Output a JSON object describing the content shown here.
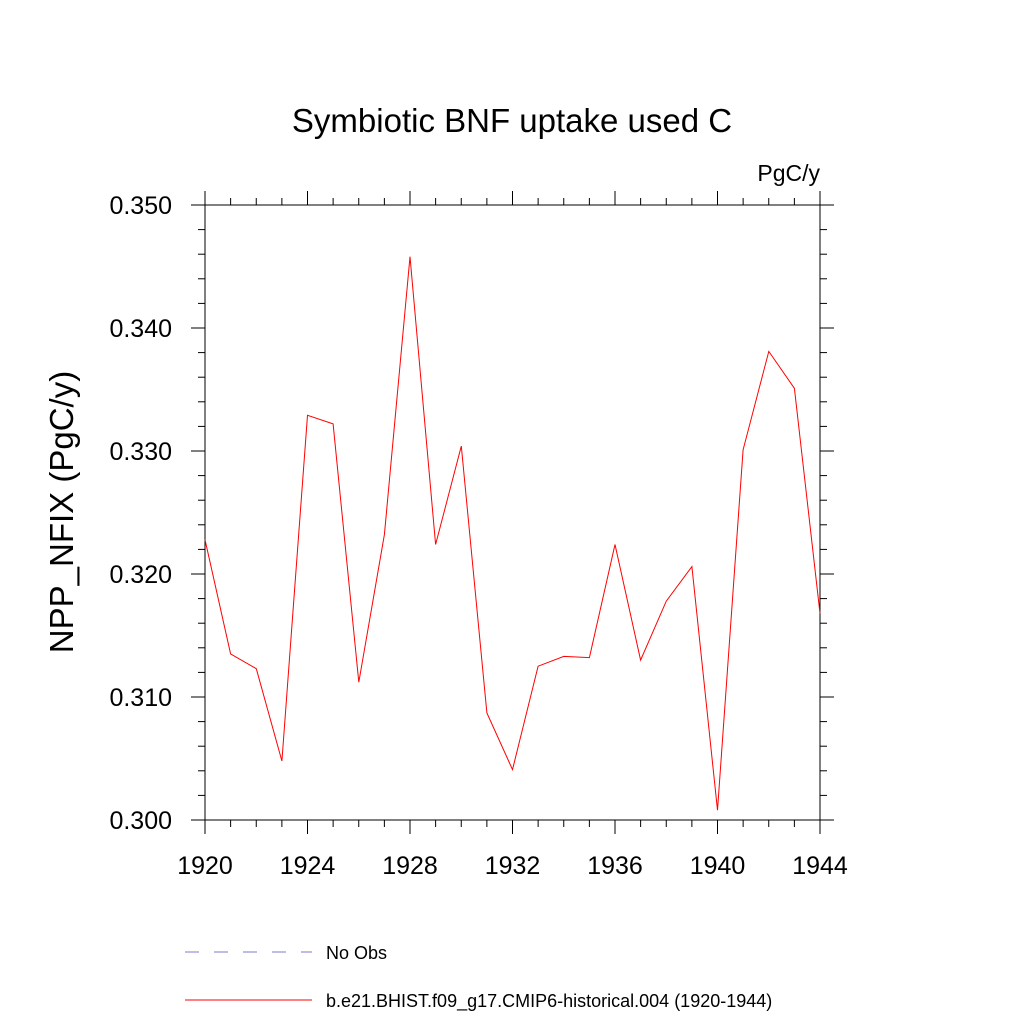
{
  "chart_data": {
    "type": "line",
    "title": "Symbiotic BNF uptake used C",
    "units_label": "PgC/y",
    "ylabel": "NPP_NFIX  (PgC/y)",
    "xlabel": "",
    "xlim": [
      1920,
      1944
    ],
    "ylim": [
      0.3,
      0.35
    ],
    "x_ticks": [
      "1920",
      "1924",
      "1928",
      "1932",
      "1936",
      "1940",
      "1944"
    ],
    "y_ticks": [
      "0.300",
      "0.310",
      "0.320",
      "0.330",
      "0.340",
      "0.350"
    ],
    "grid": false,
    "series": [
      {
        "name": "b.e21.BHIST.f09_g17.CMIP6-historical.004 (1920-1944)",
        "color": "#ff0000",
        "x": [
          1920,
          1921,
          1922,
          1923,
          1924,
          1925,
          1926,
          1927,
          1928,
          1929,
          1930,
          1931,
          1932,
          1933,
          1934,
          1935,
          1936,
          1937,
          1938,
          1939,
          1940,
          1941,
          1942,
          1943,
          1944
        ],
        "values": [
          0.3228,
          0.3135,
          0.3123,
          0.3048,
          0.3329,
          0.3322,
          0.3112,
          0.3232,
          0.3458,
          0.3224,
          0.3304,
          0.3087,
          0.3041,
          0.3125,
          0.3133,
          0.3132,
          0.3224,
          0.313,
          0.3178,
          0.3206,
          0.3008,
          0.3301,
          0.3381,
          0.3351,
          0.3168
        ]
      }
    ],
    "legend": [
      {
        "label": "No Obs",
        "color": "#7b7bcf",
        "style": "dashed"
      },
      {
        "label": "b.e21.BHIST.f09_g17.CMIP6-historical.004 (1920-1944)",
        "color": "#ff0000",
        "style": "solid"
      }
    ],
    "legend_placement": "bottom"
  }
}
